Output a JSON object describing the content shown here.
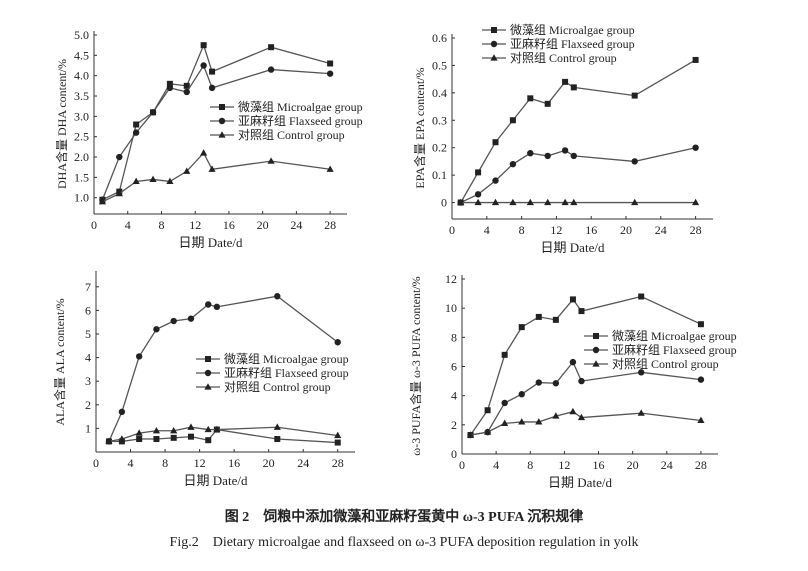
{
  "caption": {
    "zh": "图 2　饲粮中添加微藻和亚麻籽蛋黄中 ω-3 PUFA 沉积规律",
    "en": "Fig.2　Dietary microalgae and flaxseed on ω-3 PUFA deposition regulation in yolk"
  },
  "colors": {
    "line": "#555555",
    "marker": "#222222",
    "axis": "#333333"
  },
  "chart_data": [
    {
      "type": "line",
      "xlabel": "日期  Date/d",
      "ylabel": "DHA含量  DHA content/%",
      "xlim": [
        0,
        30
      ],
      "ylim": [
        0.6,
        5.0
      ],
      "xticks": [
        0,
        4,
        8,
        12,
        16,
        20,
        24,
        28
      ],
      "yticks": [
        1.0,
        1.5,
        2.0,
        2.5,
        3.0,
        3.5,
        4.0,
        4.5,
        5.0
      ],
      "ytick_labels": [
        "1.0",
        "1.5",
        "2.0",
        "2.5",
        "3.0",
        "3.5",
        "4.0",
        "4.5",
        "5.0"
      ],
      "legend": "center-right",
      "x": [
        1,
        3,
        5,
        7,
        9,
        11,
        13,
        14,
        21,
        28
      ],
      "series": [
        {
          "name": "微藻组  Microalgae group",
          "marker": "square",
          "values": [
            0.95,
            1.15,
            2.8,
            3.1,
            3.8,
            3.75,
            4.75,
            4.1,
            4.7,
            4.3
          ]
        },
        {
          "name": "亚麻籽组  Flaxseed group",
          "marker": "circle",
          "values": [
            0.95,
            2.0,
            2.6,
            3.1,
            3.7,
            3.6,
            4.25,
            3.7,
            4.15,
            4.05
          ]
        },
        {
          "name": "对照组  Control group",
          "marker": "triangle",
          "values": [
            0.9,
            1.1,
            1.4,
            1.45,
            1.4,
            1.65,
            2.1,
            1.7,
            1.9,
            1.7
          ]
        }
      ]
    },
    {
      "type": "line",
      "xlabel": "日期  Date/d",
      "ylabel": "EPA含量  EPA content/%",
      "xlim": [
        0,
        30
      ],
      "ylim": [
        -0.06,
        0.6
      ],
      "xticks": [
        0,
        4,
        8,
        12,
        16,
        20,
        24,
        28
      ],
      "yticks": [
        0,
        0.1,
        0.2,
        0.3,
        0.4,
        0.5,
        0.6
      ],
      "ytick_labels": [
        "0",
        "0.1",
        "0.2",
        "0.3",
        "0.4",
        "0.5",
        "0.6"
      ],
      "legend": "top-left",
      "x": [
        1,
        3,
        5,
        7,
        9,
        11,
        13,
        14,
        21,
        28
      ],
      "series": [
        {
          "name": "微藻组  Microalgae group",
          "marker": "square",
          "values": [
            0,
            0.11,
            0.22,
            0.3,
            0.38,
            0.36,
            0.44,
            0.42,
            0.39,
            0.52
          ]
        },
        {
          "name": "亚麻籽组  Flaxseed group",
          "marker": "circle",
          "values": [
            0,
            0.03,
            0.08,
            0.14,
            0.18,
            0.17,
            0.19,
            0.17,
            0.15,
            0.2
          ]
        },
        {
          "name": "对照组  Control group",
          "marker": "triangle",
          "values": [
            0,
            0,
            0,
            0,
            0,
            0,
            0,
            0,
            0,
            0
          ]
        }
      ]
    },
    {
      "type": "line",
      "xlabel": "日期  Date/d",
      "ylabel": "ALA含量  ALA content/%",
      "xlim": [
        0,
        30
      ],
      "ylim": [
        0,
        7.5
      ],
      "xticks": [
        0,
        4,
        8,
        12,
        16,
        20,
        24,
        28
      ],
      "yticks": [
        1,
        2,
        3,
        4,
        5,
        6,
        7
      ],
      "ytick_labels": [
        "1",
        "2",
        "3",
        "4",
        "5",
        "6",
        "7"
      ],
      "legend": "center-right",
      "x": [
        1.5,
        3,
        5,
        7,
        9,
        11,
        13,
        14,
        21,
        28
      ],
      "series": [
        {
          "name": "微藻组  Microalgae group",
          "marker": "square",
          "values": [
            0.45,
            0.45,
            0.55,
            0.55,
            0.6,
            0.65,
            0.5,
            0.95,
            0.55,
            0.4
          ]
        },
        {
          "name": "亚麻籽组  Flaxseed group",
          "marker": "circle",
          "values": [
            0.45,
            1.7,
            4.05,
            5.2,
            5.55,
            5.65,
            6.25,
            6.15,
            6.6,
            4.65
          ]
        },
        {
          "name": "对照组  Control group",
          "marker": "triangle",
          "values": [
            0.45,
            0.55,
            0.8,
            0.9,
            0.9,
            1.05,
            0.95,
            0.95,
            1.05,
            0.7
          ]
        }
      ]
    },
    {
      "type": "line",
      "xlabel": "日期  Date/d",
      "ylabel": "ω-3 PUFA含量  ω-3 PUFA content/%",
      "xlim": [
        0,
        30
      ],
      "ylim": [
        0,
        12
      ],
      "xticks": [
        0,
        4,
        8,
        12,
        16,
        20,
        24,
        28
      ],
      "yticks": [
        0,
        2,
        4,
        6,
        8,
        10,
        12
      ],
      "ytick_labels": [
        "0",
        "2",
        "4",
        "6",
        "8",
        "10",
        "12"
      ],
      "legend": "center-right",
      "x": [
        1,
        3,
        5,
        7,
        9,
        11,
        13,
        14,
        21,
        28
      ],
      "series": [
        {
          "name": "微藻组  Microalgae group",
          "marker": "square",
          "values": [
            1.3,
            3.0,
            6.8,
            8.7,
            9.4,
            9.2,
            10.6,
            9.8,
            10.8,
            8.9
          ]
        },
        {
          "name": "亚麻籽组  Flaxseed group",
          "marker": "circle",
          "values": [
            1.3,
            1.5,
            3.5,
            4.1,
            4.9,
            4.85,
            6.3,
            5.0,
            5.6,
            5.1
          ]
        },
        {
          "name": "对照组  Control group",
          "marker": "triangle",
          "values": [
            1.3,
            1.5,
            2.1,
            2.2,
            2.2,
            2.6,
            2.9,
            2.5,
            2.8,
            2.3
          ]
        }
      ]
    }
  ]
}
